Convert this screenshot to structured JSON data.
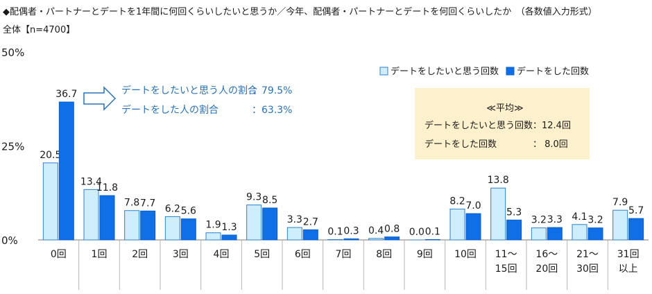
{
  "header": {
    "title": "◆配偶者・パートナーとデートを1年間に何回くらいしたいと思うか／今年、配偶者・パートナーとデートを何回くらいしたか　（各数値入力形式）",
    "subtitle": "全体【n=4700】"
  },
  "colors": {
    "series1_fill": "#cfeefc",
    "series1_stroke": "#2f7fc8",
    "series2_fill": "#0f6fe6",
    "series2_stroke": "#0b5fc6",
    "note_text": "#2a72b3",
    "avg_box": "#fdf0cc"
  },
  "annotation": {
    "line1_label": "デートをしたいと思う人の割合",
    "line1_value": "：79.5%",
    "line2_label": "デートをした人の割合",
    "line2_value": "：63.3%",
    "arrow_icon": "right-arrow-icon"
  },
  "average_box": {
    "title": "≪平均≫",
    "row1_label": "デートをしたいと思う回数",
    "row1_value": "：12.4回",
    "row2_label": "デートをした回数",
    "row2_value": "：  8.0回"
  },
  "chart_data": {
    "type": "bar",
    "categories": [
      [
        "0回"
      ],
      [
        "1回"
      ],
      [
        "2回"
      ],
      [
        "3回"
      ],
      [
        "4回"
      ],
      [
        "5回"
      ],
      [
        "6回"
      ],
      [
        "7回"
      ],
      [
        "8回"
      ],
      [
        "9回"
      ],
      [
        "10回"
      ],
      [
        "11～",
        "15回"
      ],
      [
        "16～",
        "20回"
      ],
      [
        "21～",
        "30回"
      ],
      [
        "31回",
        "以上"
      ]
    ],
    "series": [
      {
        "name": "デートをしたいと思う回数",
        "values": [
          20.5,
          13.4,
          7.8,
          6.2,
          1.9,
          9.3,
          3.3,
          0.1,
          0.4,
          0.0,
          8.2,
          13.8,
          3.2,
          4.1,
          7.9
        ],
        "labels": [
          "20.5",
          "13.4",
          "7.8",
          "6.2",
          "1.9",
          "9.3",
          "3.3",
          "0.1",
          "0.4",
          "0.0",
          "8.2",
          "13.8",
          "3.2",
          "4.1",
          "7.9"
        ]
      },
      {
        "name": "デートをした回数",
        "values": [
          36.7,
          11.8,
          7.7,
          5.6,
          1.3,
          8.5,
          2.7,
          0.3,
          0.8,
          0.1,
          7.0,
          5.3,
          3.3,
          3.2,
          5.7
        ],
        "labels": [
          "36.7",
          "11.8",
          "7.7",
          "5.6",
          "1.3",
          "8.5",
          "2.7",
          "0.3",
          "0.8",
          "0.1",
          "7.0",
          "5.3",
          "3.3",
          "3.2",
          "5.7"
        ]
      }
    ],
    "ylim": [
      0,
      50
    ],
    "yticks": [
      "50%",
      "25%",
      "0%"
    ],
    "ytick_values": [
      50,
      25,
      0
    ],
    "legend_position": "top-right",
    "grid": false
  }
}
